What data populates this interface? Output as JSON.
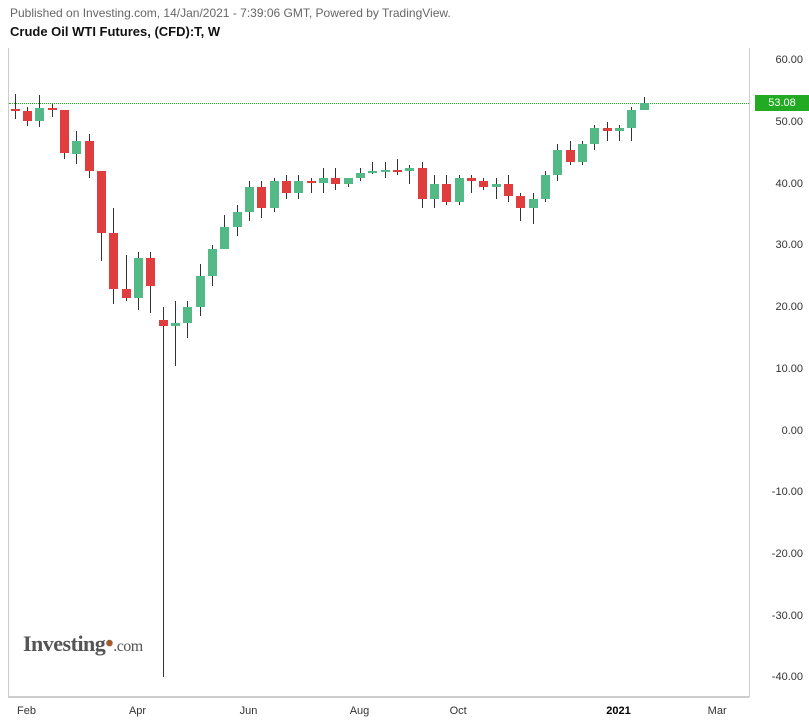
{
  "header_text": "Published on Investing.com, 14/Jan/2021 - 7:39:06 GMT, Powered by TradingView.",
  "title": "Crude Oil WTI Futures, (CFD):T, W",
  "watermark": "Investing",
  "watermark_suffix": ".com",
  "chart": {
    "type": "candlestick",
    "background_color": "#ffffff",
    "up_color": "#53b987",
    "down_color": "#e03e3e",
    "wick_color": "#333333",
    "grid_color": "#cccccc",
    "price_line_color": "#22aa22",
    "ylim": [
      -43,
      62
    ],
    "yticks": [
      60,
      50,
      40,
      30,
      20,
      10,
      0,
      -10,
      -20,
      -30,
      -40
    ],
    "ytick_labels": [
      "60.00",
      "50.00",
      "40.00",
      "30.00",
      "20.00",
      "10.00",
      "0.00",
      "-10.00",
      "-20.00",
      "-30.00",
      "-40.00"
    ],
    "xlim_count": 60,
    "xticks": [
      {
        "idx": 1,
        "label": "Feb",
        "bold": false
      },
      {
        "idx": 10,
        "label": "Apr",
        "bold": false
      },
      {
        "idx": 19,
        "label": "Jun",
        "bold": false
      },
      {
        "idx": 28,
        "label": "Aug",
        "bold": false
      },
      {
        "idx": 36,
        "label": "Oct",
        "bold": false
      },
      {
        "idx": 49,
        "label": "2021",
        "bold": true
      },
      {
        "idx": 57,
        "label": "Mar",
        "bold": false
      }
    ],
    "last_price": 53.08,
    "last_price_label": "53.08",
    "candles": [
      {
        "o": 52.1,
        "h": 54.5,
        "l": 50.5,
        "c": 51.8
      },
      {
        "o": 51.8,
        "h": 52.4,
        "l": 49.4,
        "c": 50.2
      },
      {
        "o": 50.2,
        "h": 54.4,
        "l": 49.2,
        "c": 52.2
      },
      {
        "o": 52.2,
        "h": 53.0,
        "l": 50.8,
        "c": 52.0
      },
      {
        "o": 52.0,
        "h": 52.0,
        "l": 44.0,
        "c": 45.0
      },
      {
        "o": 44.8,
        "h": 48.5,
        "l": 43.2,
        "c": 47.0
      },
      {
        "o": 47.0,
        "h": 48.0,
        "l": 41.0,
        "c": 42.0
      },
      {
        "o": 42.0,
        "h": 42.0,
        "l": 27.5,
        "c": 32.0
      },
      {
        "o": 32.0,
        "h": 36.0,
        "l": 20.5,
        "c": 23.0
      },
      {
        "o": 23.0,
        "h": 28.5,
        "l": 21.0,
        "c": 21.5
      },
      {
        "o": 21.5,
        "h": 29.0,
        "l": 19.5,
        "c": 28.0
      },
      {
        "o": 28.0,
        "h": 29.0,
        "l": 19.0,
        "c": 23.5
      },
      {
        "o": 18.0,
        "h": 20.0,
        "l": -40.0,
        "c": 17.0
      },
      {
        "o": 17.0,
        "h": 21.0,
        "l": 10.5,
        "c": 17.5
      },
      {
        "o": 17.5,
        "h": 21.0,
        "l": 15.0,
        "c": 20.0
      },
      {
        "o": 20.0,
        "h": 27.0,
        "l": 18.5,
        "c": 25.0
      },
      {
        "o": 25.0,
        "h": 30.0,
        "l": 23.5,
        "c": 29.5
      },
      {
        "o": 29.5,
        "h": 35.0,
        "l": 29.5,
        "c": 33.0
      },
      {
        "o": 33.0,
        "h": 36.5,
        "l": 31.5,
        "c": 35.5
      },
      {
        "o": 35.5,
        "h": 40.5,
        "l": 34.0,
        "c": 39.5
      },
      {
        "o": 39.5,
        "h": 40.5,
        "l": 34.5,
        "c": 36.0
      },
      {
        "o": 36.0,
        "h": 41.0,
        "l": 35.5,
        "c": 40.5
      },
      {
        "o": 40.5,
        "h": 41.5,
        "l": 37.5,
        "c": 38.5
      },
      {
        "o": 38.5,
        "h": 41.5,
        "l": 37.5,
        "c": 40.5
      },
      {
        "o": 40.5,
        "h": 41.0,
        "l": 38.5,
        "c": 40.2
      },
      {
        "o": 40.2,
        "h": 42.5,
        "l": 38.5,
        "c": 41.0
      },
      {
        "o": 41.0,
        "h": 42.5,
        "l": 39.0,
        "c": 40.0
      },
      {
        "o": 40.0,
        "h": 41.0,
        "l": 39.5,
        "c": 41.0
      },
      {
        "o": 41.0,
        "h": 42.5,
        "l": 40.5,
        "c": 41.8
      },
      {
        "o": 41.8,
        "h": 43.5,
        "l": 41.5,
        "c": 42.0
      },
      {
        "o": 42.0,
        "h": 43.5,
        "l": 41.0,
        "c": 42.2
      },
      {
        "o": 42.2,
        "h": 44.0,
        "l": 41.5,
        "c": 42.0
      },
      {
        "o": 42.0,
        "h": 43.0,
        "l": 40.0,
        "c": 42.5
      },
      {
        "o": 42.5,
        "h": 43.5,
        "l": 36.0,
        "c": 37.5
      },
      {
        "o": 37.5,
        "h": 41.5,
        "l": 36.0,
        "c": 40.0
      },
      {
        "o": 40.0,
        "h": 41.5,
        "l": 36.5,
        "c": 37.0
      },
      {
        "o": 37.0,
        "h": 41.5,
        "l": 36.5,
        "c": 41.0
      },
      {
        "o": 41.0,
        "h": 41.5,
        "l": 38.5,
        "c": 40.5
      },
      {
        "o": 40.5,
        "h": 41.0,
        "l": 39.0,
        "c": 39.5
      },
      {
        "o": 39.5,
        "h": 41.0,
        "l": 37.5,
        "c": 40.0
      },
      {
        "o": 40.0,
        "h": 41.5,
        "l": 37.0,
        "c": 38.0
      },
      {
        "o": 38.0,
        "h": 38.5,
        "l": 34.0,
        "c": 36.0
      },
      {
        "o": 36.0,
        "h": 38.5,
        "l": 33.5,
        "c": 37.5
      },
      {
        "o": 37.5,
        "h": 42.0,
        "l": 37.0,
        "c": 41.5
      },
      {
        "o": 41.5,
        "h": 46.5,
        "l": 40.5,
        "c": 45.5
      },
      {
        "o": 45.5,
        "h": 47.0,
        "l": 43.0,
        "c": 43.5
      },
      {
        "o": 43.5,
        "h": 47.0,
        "l": 43.0,
        "c": 46.5
      },
      {
        "o": 46.5,
        "h": 49.5,
        "l": 45.5,
        "c": 49.0
      },
      {
        "o": 49.0,
        "h": 50.0,
        "l": 47.0,
        "c": 48.5
      },
      {
        "o": 48.5,
        "h": 49.5,
        "l": 47.0,
        "c": 49.0
      },
      {
        "o": 49.0,
        "h": 52.5,
        "l": 47.0,
        "c": 52.0
      },
      {
        "o": 52.0,
        "h": 54.0,
        "l": 52.0,
        "c": 53.08
      }
    ]
  }
}
